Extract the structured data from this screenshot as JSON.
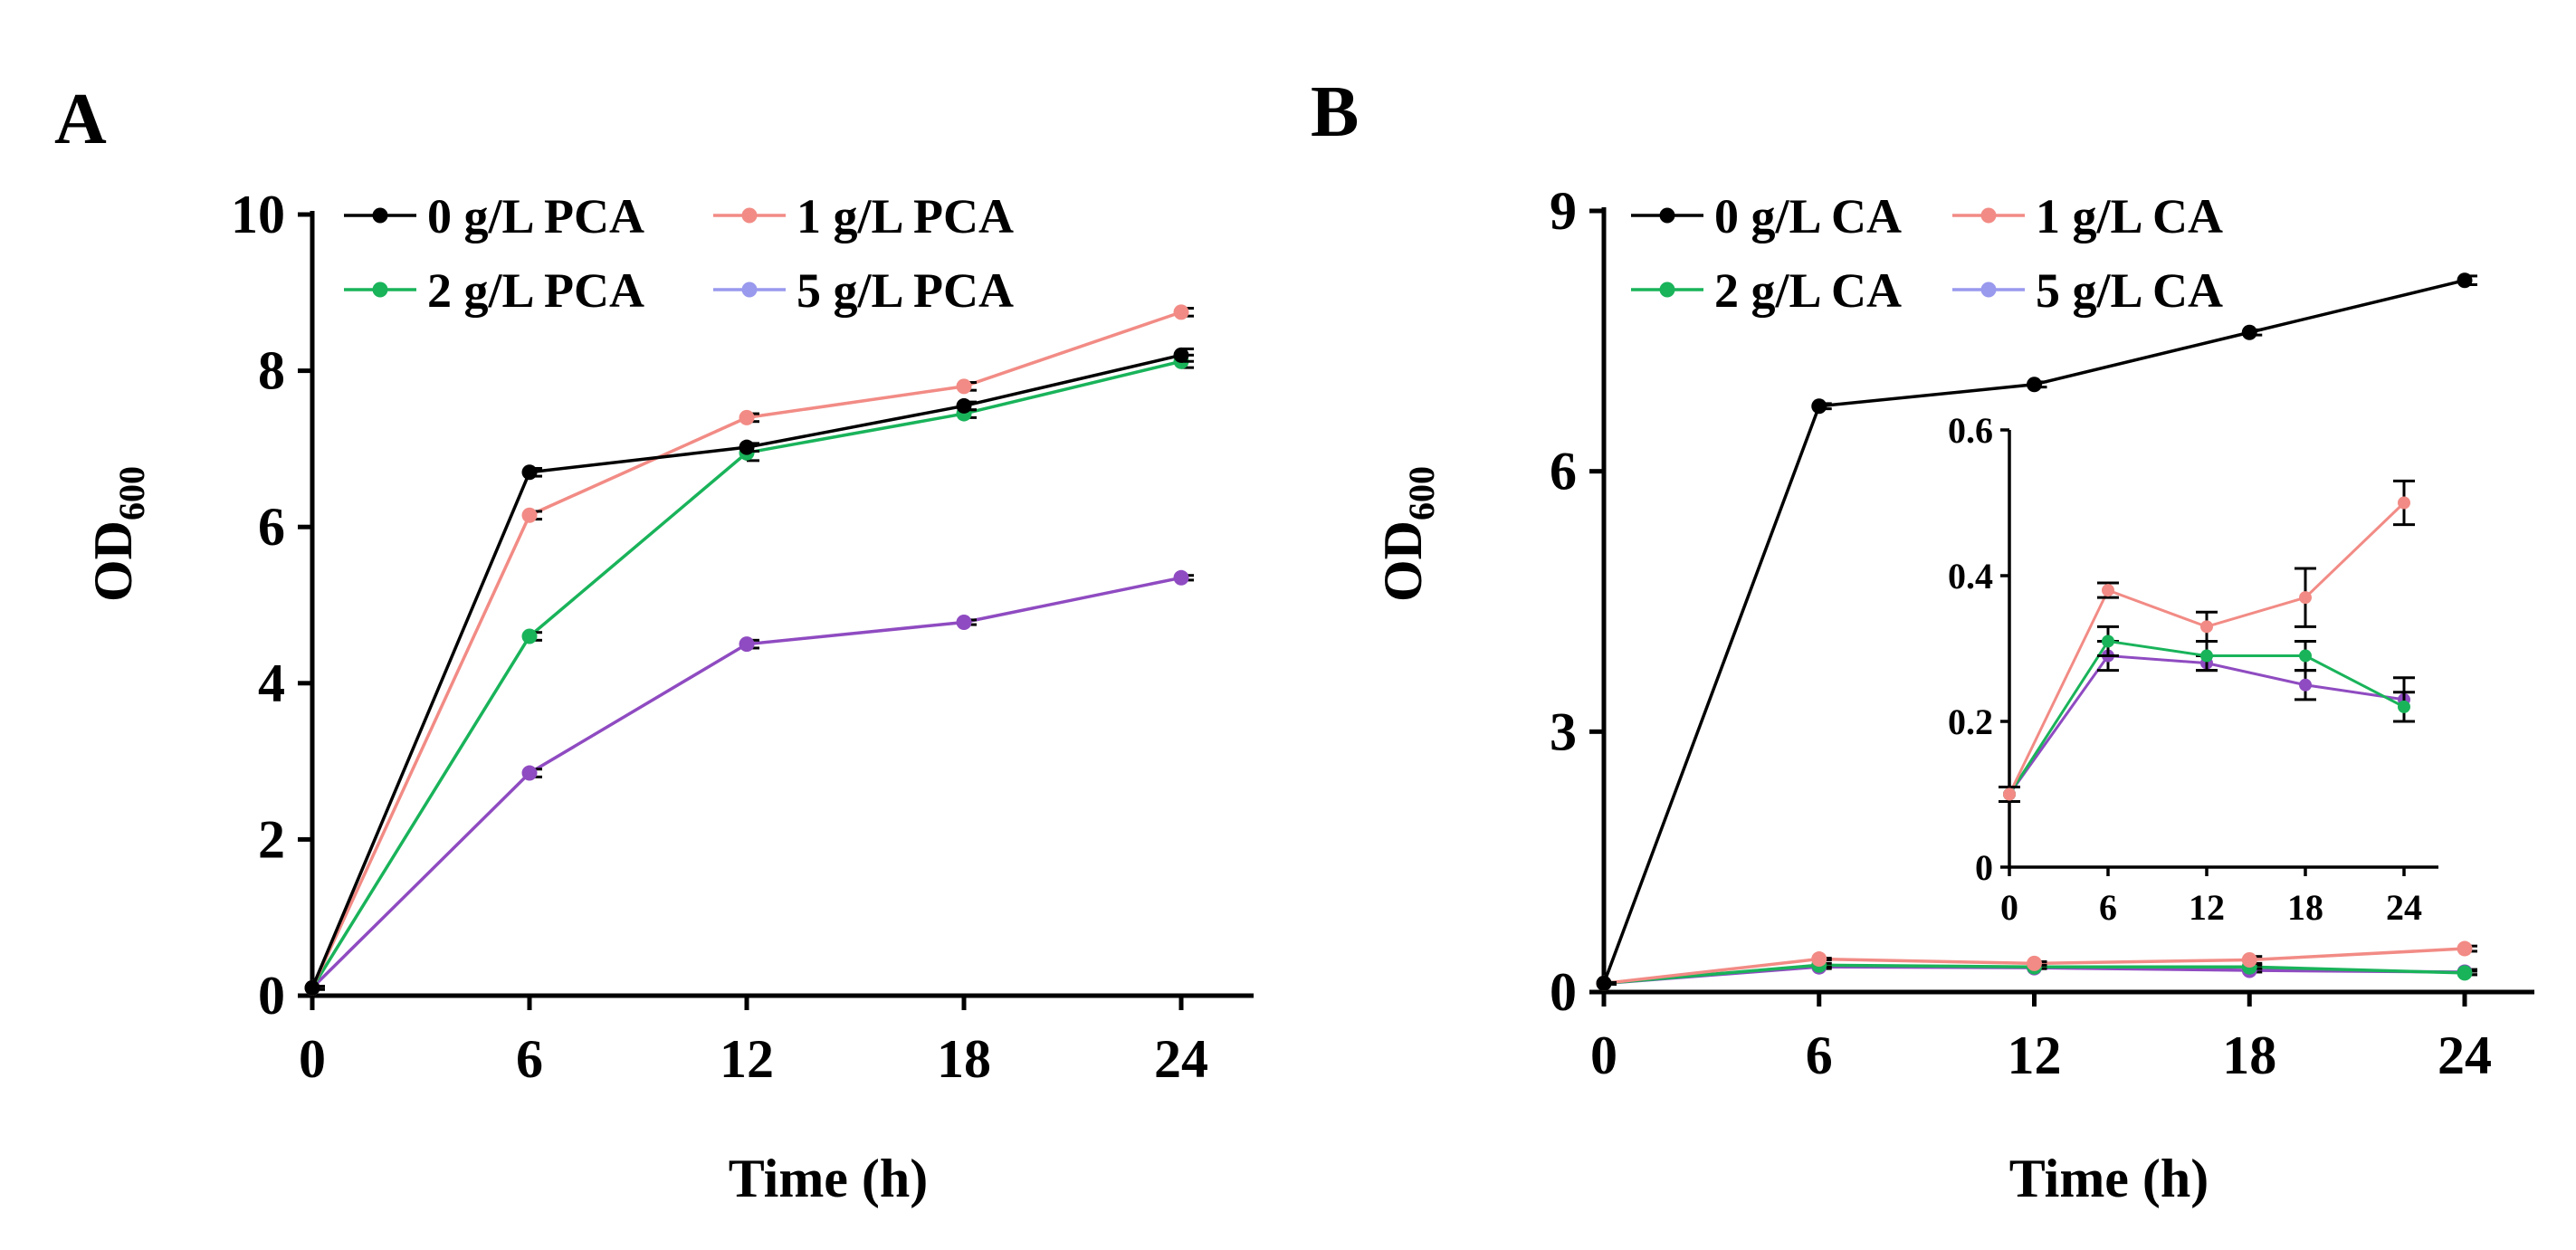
{
  "figure": {
    "panel_a_letter": "A",
    "panel_b_letter": "B",
    "ylabel_main": "OD",
    "ylabel_sub": "600",
    "xlabel": "Time (h)"
  },
  "colors": {
    "s0": "#000000",
    "s1": "#f28b85",
    "s2": "#19b35a",
    "s5": "#8f4bc1",
    "legend_s5": "#9999ee"
  },
  "chart_data": [
    {
      "id": "A",
      "type": "line",
      "x": [
        0,
        6,
        12,
        18,
        24
      ],
      "xticks": [
        "0",
        "6",
        "12",
        "18",
        "24"
      ],
      "yticks": [
        "0",
        "2",
        "4",
        "6",
        "8",
        "10"
      ],
      "ylim": [
        0,
        10
      ],
      "xlim": [
        0,
        24
      ],
      "xlabel": "Time (h)",
      "ylabel": "OD600",
      "legend": [
        "0 g/L PCA",
        "1 g/L PCA",
        "2 g/L PCA",
        "5 g/L PCA"
      ],
      "legend_placement": "top-left",
      "grid": false,
      "series": [
        {
          "name": "0 g/L PCA",
          "color_key": "s0",
          "values": [
            0.1,
            6.7,
            7.02,
            7.55,
            8.2
          ],
          "errors": [
            0.02,
            0.05,
            0.05,
            0.05,
            0.08
          ]
        },
        {
          "name": "1 g/L PCA",
          "color_key": "s1",
          "values": [
            0.1,
            6.15,
            7.4,
            7.8,
            8.75
          ],
          "errors": [
            0.02,
            0.05,
            0.05,
            0.05,
            0.05
          ]
        },
        {
          "name": "2 g/L PCA",
          "color_key": "s2",
          "values": [
            0.1,
            4.6,
            6.95,
            7.45,
            8.12
          ],
          "errors": [
            0.02,
            0.05,
            0.1,
            0.05,
            0.08
          ]
        },
        {
          "name": "5 g/L PCA",
          "color_key": "s5",
          "values": [
            0.1,
            2.85,
            4.5,
            4.78,
            5.35
          ],
          "errors": [
            0.02,
            0.05,
            0.05,
            0.03,
            0.03
          ]
        }
      ]
    },
    {
      "id": "B",
      "type": "line",
      "x": [
        0,
        6,
        12,
        18,
        24
      ],
      "xticks": [
        "0",
        "6",
        "12",
        "18",
        "24"
      ],
      "yticks": [
        "0",
        "3",
        "6",
        "9"
      ],
      "ylim": [
        0,
        9
      ],
      "xlim": [
        0,
        24
      ],
      "xlabel": "Time (h)",
      "ylabel": "OD600",
      "legend": [
        "0 g/L CA",
        "1 g/L CA",
        "2 g/L CA",
        "5 g/L CA"
      ],
      "legend_placement": "top-left",
      "grid": false,
      "series": [
        {
          "name": "0 g/L CA",
          "color_key": "s0",
          "values": [
            0.1,
            6.75,
            7.0,
            7.6,
            8.2
          ],
          "errors": [
            0.01,
            0.03,
            0.03,
            0.03,
            0.05
          ]
        },
        {
          "name": "1 g/L CA",
          "color_key": "s1",
          "values": [
            0.1,
            0.38,
            0.33,
            0.37,
            0.5
          ],
          "errors": [
            0.01,
            0.01,
            0.02,
            0.04,
            0.03
          ]
        },
        {
          "name": "2 g/L CA",
          "color_key": "s2",
          "values": [
            0.1,
            0.31,
            0.29,
            0.29,
            0.22
          ],
          "errors": [
            0.01,
            0.02,
            0.02,
            0.02,
            0.02
          ]
        },
        {
          "name": "5 g/L CA",
          "color_key": "s5",
          "values": [
            0.1,
            0.29,
            0.28,
            0.25,
            0.23
          ],
          "errors": [
            0.01,
            0.02,
            0.01,
            0.02,
            0.03
          ]
        }
      ],
      "inset": {
        "type": "line",
        "xticks": [
          "0",
          "6",
          "12",
          "18",
          "24"
        ],
        "yticks": [
          "0",
          "0.2",
          "0.4",
          "0.6"
        ],
        "ylim": [
          0,
          0.6
        ],
        "xlim": [
          0,
          24
        ],
        "series_shown": [
          "1 g/L CA",
          "2 g/L CA",
          "5 g/L CA"
        ]
      }
    }
  ]
}
